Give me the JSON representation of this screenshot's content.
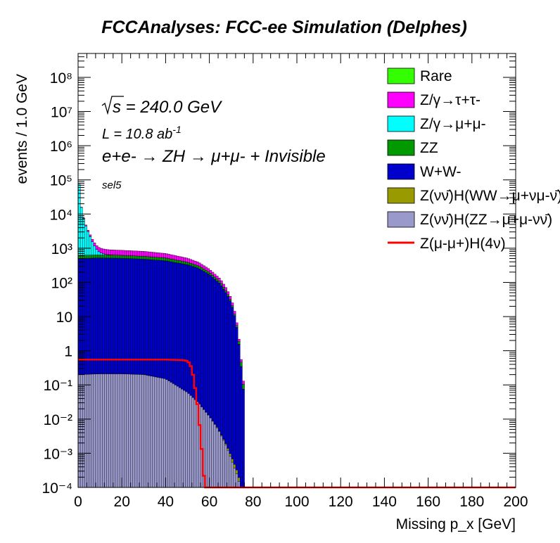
{
  "chart_data": {
    "type": "bar",
    "stacked": true,
    "title": "FCCAnalyses: FCC-ee Simulation (Delphes)",
    "xlabel": "Missing p_x [GeV]",
    "ylabel": "events / 1.0 GeV",
    "xlim": [
      0,
      200
    ],
    "ylim": [
      0.0001,
      500000000
    ],
    "yscale": "log",
    "bin_width": 1.0,
    "x_ticks": [
      "0",
      "20",
      "40",
      "60",
      "80",
      "100",
      "120",
      "140",
      "160",
      "180",
      "200"
    ],
    "legend_position": "top-right",
    "annotations": {
      "sqrt_s": "s = 240.0 GeV",
      "lumi": "L = 10.8 ab",
      "lumi_exp": "-1",
      "process": "e+e- → ZH → μ+μ- + Invisible",
      "selection": "sel5"
    },
    "series": [
      {
        "name": "Z(νν̄)H(ZZ→μ+μ-νν̄)",
        "color": "#9999cc",
        "points": [
          [
            0,
            0.2
          ],
          [
            10,
            0.21
          ],
          [
            20,
            0.21
          ],
          [
            30,
            0.2
          ],
          [
            40,
            0.15
          ],
          [
            50,
            0.06
          ],
          [
            55,
            0.03
          ],
          [
            60,
            0.012
          ],
          [
            64,
            0.005
          ],
          [
            68,
            0.0015
          ],
          [
            72,
            0.0003
          ],
          [
            75,
            0
          ]
        ]
      },
      {
        "name": "Z(νν̄)H(WW→μ+νμ-ν̄)",
        "color": "#999900",
        "points": [
          [
            0,
            0.001
          ],
          [
            5,
            0.0012
          ],
          [
            10,
            0.001
          ],
          [
            20,
            0.0011
          ],
          [
            30,
            0.0009
          ],
          [
            40,
            0.0008
          ],
          [
            50,
            0.0006
          ],
          [
            55,
            0.0004
          ],
          [
            60,
            0.0003
          ],
          [
            65,
            0.0002
          ],
          [
            70,
            0.00015
          ],
          [
            75,
            0
          ]
        ]
      },
      {
        "name": "W+W-",
        "color": "#0000cc",
        "points": [
          [
            0,
            500
          ],
          [
            10,
            520
          ],
          [
            20,
            510
          ],
          [
            30,
            480
          ],
          [
            40,
            430
          ],
          [
            50,
            330
          ],
          [
            55,
            260
          ],
          [
            60,
            170
          ],
          [
            65,
            90
          ],
          [
            68,
            45
          ],
          [
            70,
            25
          ],
          [
            72,
            8
          ],
          [
            73,
            3
          ],
          [
            74,
            0.8
          ],
          [
            75,
            0.15
          ],
          [
            76,
            0
          ]
        ]
      },
      {
        "name": "ZZ",
        "color": "#009900",
        "points": [
          [
            0,
            120
          ],
          [
            10,
            115
          ],
          [
            20,
            110
          ],
          [
            30,
            100
          ],
          [
            40,
            90
          ],
          [
            50,
            60
          ],
          [
            55,
            48
          ],
          [
            60,
            28
          ],
          [
            65,
            14
          ],
          [
            68,
            6
          ],
          [
            70,
            2.5
          ],
          [
            72,
            0.8
          ],
          [
            74,
            0.25
          ],
          [
            75,
            0.06
          ],
          [
            76,
            0
          ]
        ]
      },
      {
        "name": "Z/γ→μ+μ-",
        "color": "#00ffff",
        "points": [
          [
            0,
            220000
          ],
          [
            1,
            25000
          ],
          [
            2,
            9000
          ],
          [
            3,
            5000
          ],
          [
            4,
            3000
          ],
          [
            5,
            2000
          ],
          [
            6,
            1200
          ],
          [
            7,
            700
          ],
          [
            8,
            400
          ],
          [
            9,
            200
          ],
          [
            10,
            120
          ],
          [
            11,
            70
          ],
          [
            12,
            40
          ],
          [
            14,
            15
          ],
          [
            16,
            5
          ],
          [
            18,
            2
          ],
          [
            20,
            0.5
          ],
          [
            22,
            0
          ]
        ]
      },
      {
        "name": "Z/γ→τ+τ-",
        "color": "#ff00ff",
        "points": [
          [
            0,
            300
          ],
          [
            10,
            270
          ],
          [
            20,
            250
          ],
          [
            30,
            230
          ],
          [
            40,
            180
          ],
          [
            50,
            120
          ],
          [
            55,
            80
          ],
          [
            60,
            45
          ],
          [
            65,
            22
          ],
          [
            68,
            12
          ],
          [
            70,
            6
          ],
          [
            72,
            2
          ],
          [
            73,
            0.6
          ],
          [
            74,
            0.15
          ],
          [
            75,
            0.05
          ],
          [
            76,
            0
          ]
        ]
      },
      {
        "name": "Rare",
        "color": "#33ff00",
        "points": [
          [
            0,
            20
          ],
          [
            1,
            15
          ],
          [
            2,
            10
          ],
          [
            3,
            6
          ],
          [
            4,
            3
          ],
          [
            5,
            1.5
          ],
          [
            6,
            0.8
          ],
          [
            8,
            0.5
          ],
          [
            12,
            0.2
          ],
          [
            20,
            0.05
          ],
          [
            30,
            0
          ]
        ]
      }
    ],
    "signal": {
      "name": "Z(μ-μ+)H(4ν)",
      "color": "#ff0000",
      "points": [
        [
          0,
          0.55
        ],
        [
          10,
          0.55
        ],
        [
          20,
          0.55
        ],
        [
          30,
          0.55
        ],
        [
          40,
          0.55
        ],
        [
          45,
          0.54
        ],
        [
          48,
          0.53
        ],
        [
          50,
          0.5
        ],
        [
          51,
          0.42
        ],
        [
          52,
          0.3
        ],
        [
          53,
          0.13
        ],
        [
          54,
          0.05
        ],
        [
          55,
          0.015
        ],
        [
          56,
          0.003
        ],
        [
          57,
          0.0006
        ],
        [
          58,
          8e-05
        ],
        [
          59,
          0
        ]
      ]
    }
  }
}
